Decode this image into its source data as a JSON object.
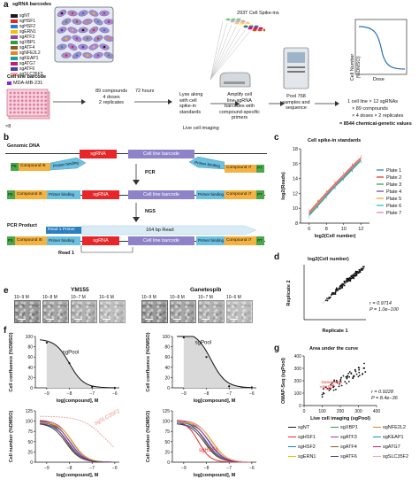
{
  "panel_labels": {
    "a": "a",
    "b": "b",
    "c": "c",
    "d": "d",
    "e": "e",
    "f": "f",
    "g": "g"
  },
  "a": {
    "barcodes_title": "sgRNA barcodes",
    "barcodes": [
      {
        "name": "sgNT",
        "color": "#1a1a1a"
      },
      {
        "name": "sgHSF1",
        "color": "#e8262a"
      },
      {
        "name": "sgHSF2",
        "color": "#1f7fd4"
      },
      {
        "name": "sgERN1",
        "color": "#f4c000"
      },
      {
        "name": "sgATF3",
        "color": "#9b3fa0"
      },
      {
        "name": "sgXBP1",
        "color": "#2e9d42"
      },
      {
        "name": "sgATF4",
        "color": "#8a5a2b"
      },
      {
        "name": "sgNFE2L2",
        "color": "#f07f1c"
      },
      {
        "name": "sgKEAP1",
        "color": "#14a0a0"
      },
      {
        "name": "sgATG7",
        "color": "#c51b7d"
      },
      {
        "name": "sgATF6",
        "color": "#4b3ea8"
      },
      {
        "name": "sgSLC35F2",
        "color": "#f4a6a6"
      }
    ],
    "cell_line_barcode_title": "Cell line barcode",
    "cell_line_barcode": "MDA-MB-231",
    "plate_multiplier": "×8",
    "step1": "89 compounds\n4 doses\n2 replicates",
    "step1_time": "72 hours",
    "live_imaging": "Live cell imaging",
    "spike_ins": "293T Cell Spike-ins",
    "step2": "Lyse along\nwith cell\nspike-in\nstandards",
    "step3": "Amplify cell\nline-sgRNA\nbarcodes with\ncompound-specific\nprimers",
    "step4": "Pool 768\nsamples and\nsequence",
    "curve_ylabel": "Cell Number\n(%DMSO)",
    "curve_xlabel": "Dose",
    "summary_line1": "1 cell line × 12 sgRNAs",
    "summary_line2": "× 89 compounds",
    "summary_line3": "× 4 doses × 2 replicates",
    "summary_line4": "= 8544 chemical-genetic values"
  },
  "b": {
    "genomic_dna": "Genomic DNA",
    "sgrna": "sgRNA",
    "cell_line_barcode": "Cell line barcode",
    "p5": "P5",
    "p7": "P7",
    "compound_i5": "Compound i5",
    "compound_i7": "Compound i7",
    "primer_binding": "Primer binding",
    "pcr": "PCR",
    "ngs": "NGS",
    "pcr_product": "PCR Product",
    "read1_primer": "Read 1 Primer",
    "read_length": "164 bp Read",
    "read1": "Read 1"
  },
  "c": {
    "title": "Cell spike-in standards",
    "ylabel": "log2(Reads)",
    "xlabel": "log2(Cell number)"
  },
  "d": {
    "title": "log2(Cell number)",
    "ylabel": "Replicate 2",
    "xlabel": "Replicate 1",
    "r_text": "r = 0.9714",
    "p_text": "P = 1.0e−100"
  },
  "e": {
    "drug1": "YM155",
    "drug2": "Ganetespib",
    "doses1": [
      "10−9 M",
      "10−8 M",
      "10−7 M",
      "10−6 M"
    ],
    "doses2": [
      "10−9 M",
      "10−8 M",
      "10−7 M",
      "10−6 M"
    ]
  },
  "f": {
    "top_ylabel": "Cell confluence\n(%DMSO)",
    "bottom_ylabel": "Cell number\n(%DMSO)",
    "xlabel": "log[compound], M",
    "sgpool": "sgPool",
    "slc_label": "sgSLC35F2",
    "hsf1_label": "sgHSF1"
  },
  "g": {
    "title": "Area under the curve",
    "ylabel": "OMAP-Seq (sgPool)",
    "xlabel": "Live cell imaging (sgPool)",
    "r_text": "r = 0.9228",
    "p_text": "P = 8.4e−36",
    "label1": "Ganetespib",
    "label2": "YM155"
  },
  "chart_data": [
    {
      "type": "line",
      "title": "Cell spike-in standards",
      "xlabel": "log2(Cell number)",
      "ylabel": "log2(Reads)",
      "xlim": [
        5,
        13
      ],
      "ylim": [
        8,
        18
      ],
      "x": [
        6,
        7,
        8,
        9,
        10,
        11,
        12
      ],
      "xticks": [
        6,
        8,
        10,
        12
      ],
      "yticks": [
        8,
        10,
        12,
        14,
        16,
        18
      ],
      "legend": "right",
      "series": [
        {
          "name": "Plate 1",
          "color": "#1b7fbd",
          "values": [
            9.3,
            10.6,
            11.9,
            13.1,
            14.2,
            15.5,
            16.6
          ]
        },
        {
          "name": "Plate 2",
          "color": "#e8262a",
          "values": [
            9.5,
            10.8,
            12.1,
            13.3,
            14.5,
            15.7,
            16.8
          ]
        },
        {
          "name": "Plate 3",
          "color": "#2e9d42",
          "values": [
            9.0,
            10.3,
            11.6,
            12.9,
            14.0,
            15.2,
            16.4
          ]
        },
        {
          "name": "Plate 4",
          "color": "#6b3fa0",
          "values": [
            9.2,
            10.5,
            11.8,
            13.0,
            14.2,
            15.4,
            16.5
          ]
        },
        {
          "name": "Plate 5",
          "color": "#f4a300",
          "values": [
            9.4,
            10.7,
            12.0,
            13.2,
            14.4,
            15.6,
            16.7
          ]
        },
        {
          "name": "Plate 6",
          "color": "#17becf",
          "values": [
            9.1,
            10.4,
            11.7,
            12.9,
            14.1,
            15.3,
            16.5
          ]
        },
        {
          "name": "Plate 7",
          "color": "#e377c2",
          "values": [
            9.3,
            10.5,
            11.9,
            13.1,
            14.3,
            15.5,
            16.6
          ]
        }
      ]
    },
    {
      "type": "scatter",
      "title": "log2(Cell number)",
      "xlabel": "Replicate 1",
      "ylabel": "Replicate 2",
      "xlim": [
        0,
        16
      ],
      "ylim": [
        0,
        16
      ],
      "points_note": "tight cluster along the diagonal from ~8 to ~15"
    },
    {
      "type": "line",
      "xlabel": "log[compound], M",
      "ylabel": "Cell confluence (%DMSO)",
      "xlim": [
        -9.5,
        -5.8
      ],
      "ylim": [
        0,
        100
      ],
      "xticks": [
        -9,
        -8,
        -7,
        -6
      ],
      "yticks": [
        0,
        20,
        40,
        60,
        80,
        100
      ],
      "x": [
        -9,
        -8,
        -7,
        -6
      ],
      "series": [
        {
          "name": "sgPool",
          "values": [
            88,
            48,
            2,
            0
          ]
        }
      ]
    },
    {
      "type": "line",
      "xlabel": "log[compound], M",
      "ylabel": "Cell confluence (%DMSO)",
      "xlim": [
        -9.5,
        -5.8
      ],
      "ylim": [
        0,
        100
      ],
      "xticks": [
        -9,
        -8,
        -7,
        -6
      ],
      "yticks": [
        0,
        20,
        40,
        60,
        80,
        100
      ],
      "x": [
        -9,
        -8,
        -7,
        -6
      ],
      "series": [
        {
          "name": "sgPool",
          "values": [
            98,
            60,
            3,
            1
          ]
        }
      ]
    },
    {
      "type": "line",
      "xlabel": "log[compound], M",
      "ylabel": "Cell number (%DMSO)",
      "xlim": [
        -9.5,
        -5.8
      ],
      "ylim": [
        0,
        125
      ],
      "xticks": [
        -9,
        -8,
        -7,
        -6
      ],
      "yticks": [
        0,
        25,
        50,
        75,
        100,
        125
      ],
      "x": [
        -9,
        -8,
        -7,
        -6
      ]
    },
    {
      "type": "line",
      "xlabel": "log[compound], M",
      "ylabel": "Cell number (%DMSO)",
      "xlim": [
        -9.5,
        -5.8
      ],
      "ylim": [
        0,
        125
      ],
      "xticks": [
        -9,
        -8,
        -7,
        -6
      ],
      "yticks": [
        0,
        25,
        50,
        75,
        100,
        125
      ],
      "x": [
        -9,
        -8,
        -7,
        -6
      ]
    },
    {
      "type": "scatter",
      "title": "Area under the curve",
      "xlabel": "Live cell imaging (sgPool)",
      "ylabel": "OMAP-Seq (sgPool)",
      "xlim": [
        0,
        400
      ],
      "ylim": [
        0,
        400
      ],
      "xticks": [
        0,
        100,
        200,
        300,
        400
      ],
      "yticks": [
        0,
        100,
        200,
        300,
        400
      ]
    }
  ],
  "g_legend": [
    {
      "name": "sgNT",
      "color": "#1a1a1a"
    },
    {
      "name": "sgXBP1",
      "color": "#2e9d42"
    },
    {
      "name": "sgNFE2L2",
      "color": "#f07f1c"
    },
    {
      "name": "sgHSF1",
      "color": "#e8262a"
    },
    {
      "name": "sgATF3",
      "color": "#9b3fa0"
    },
    {
      "name": "sgKEAP1",
      "color": "#14a0a0"
    },
    {
      "name": "sgHSF2",
      "color": "#1f7fd4"
    },
    {
      "name": "sgATF4",
      "color": "#8a5a2b"
    },
    {
      "name": "sgATG7",
      "color": "#c51b7d"
    },
    {
      "name": "sgERN1",
      "color": "#f4c000"
    },
    {
      "name": "sgATF6",
      "color": "#4b3ea8"
    },
    {
      "name": "sgSLC35F2",
      "color": "#f4a6a6"
    }
  ]
}
